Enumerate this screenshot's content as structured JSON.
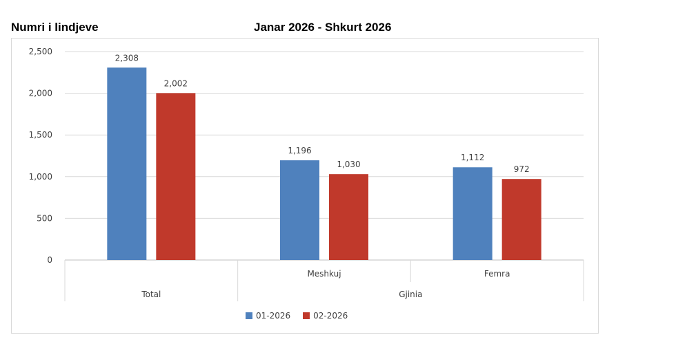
{
  "header": {
    "ylabel_title": "Numri i lindjeve",
    "period_title": "Janar 2026 - Shkurt 2026"
  },
  "chart_data": {
    "type": "bar",
    "title": "Janar 2026 - Shkurt 2026",
    "ylabel": "Numri i lindjeve",
    "categories": [
      "Total",
      "Meshkuj",
      "Femra"
    ],
    "group_labels": [
      "Total",
      "Gjinia"
    ],
    "series": [
      {
        "name": "01-2026",
        "color": "#4f81bd",
        "values": [
          2308,
          1196,
          1112
        ],
        "labels": [
          "2,308",
          "1,196",
          "1,112"
        ]
      },
      {
        "name": "02-2026",
        "color": "#c0392b",
        "values": [
          2002,
          1030,
          972
        ],
        "labels": [
          "2,002",
          "1,030",
          "972"
        ]
      }
    ],
    "ylim": [
      0,
      2500
    ],
    "yticks": [
      0,
      500,
      1000,
      1500,
      2000,
      2500
    ],
    "ytick_labels": [
      "0",
      "500",
      "1,000",
      "1,500",
      "2,000",
      "2,500"
    ],
    "grid": true,
    "legend": "bottom"
  }
}
